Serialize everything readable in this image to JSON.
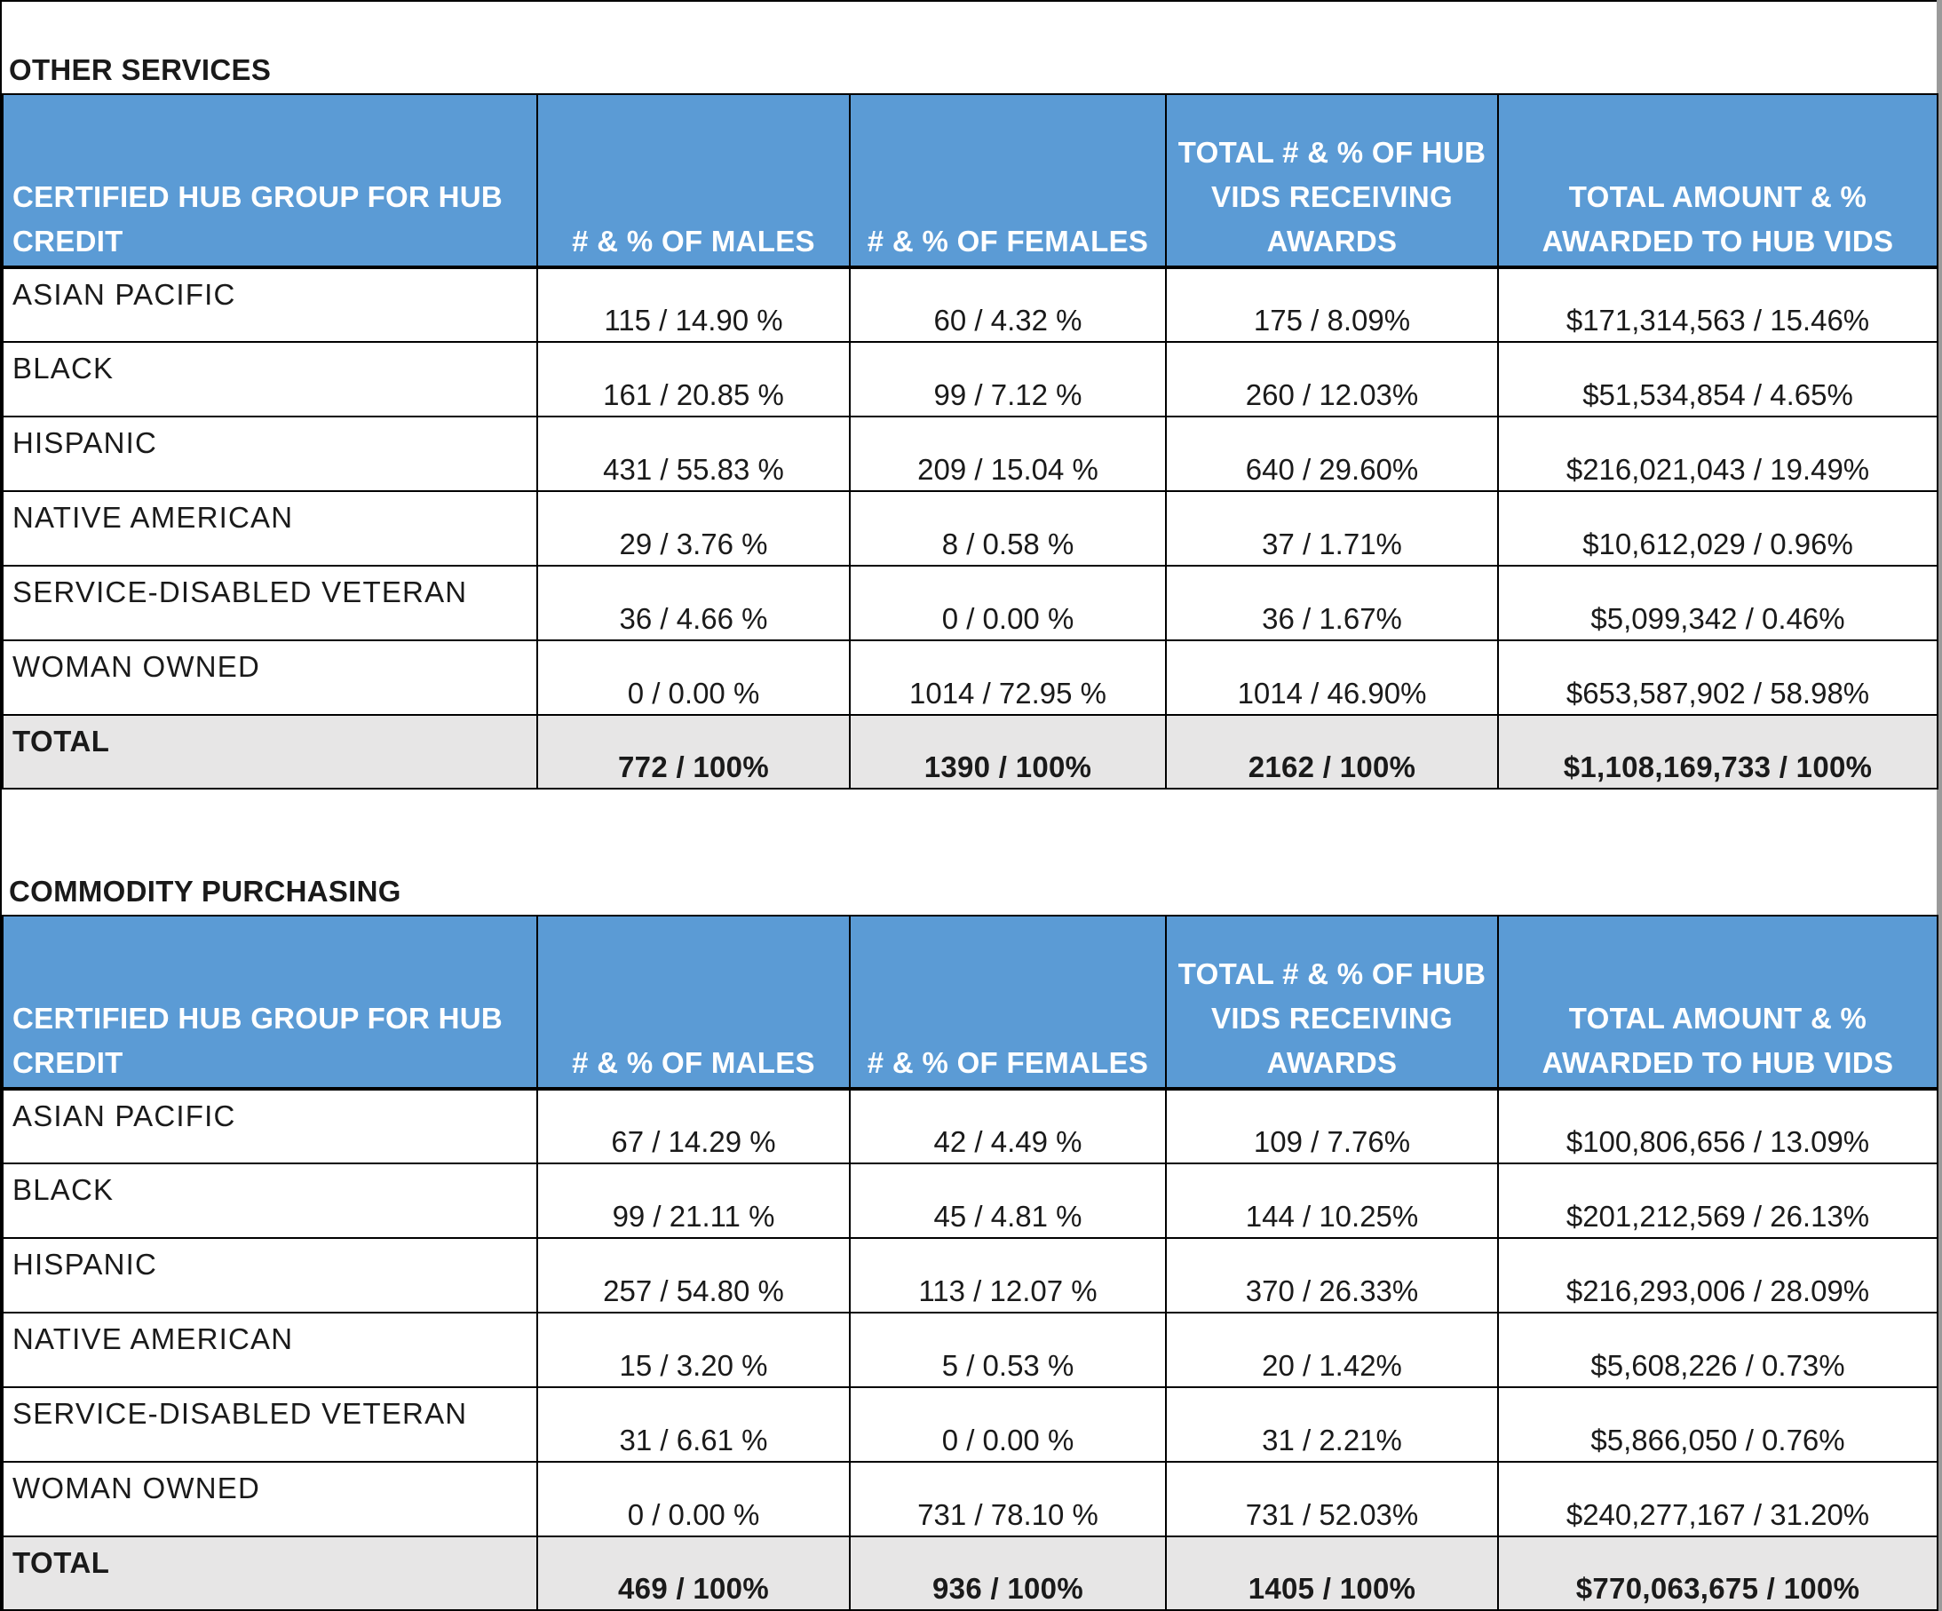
{
  "sections": [
    {
      "title": "OTHER SERVICES",
      "headers": [
        "CERTIFIED HUB GROUP FOR HUB CREDIT",
        "# & % OF MALES",
        "# & % OF FEMALES",
        "TOTAL # & % OF HUB VIDS RECEIVING AWARDS",
        "TOTAL AMOUNT & % AWARDED TO HUB VIDS"
      ],
      "rows": [
        [
          "ASIAN PACIFIC",
          "115 / 14.90 %",
          "60 / 4.32 %",
          "175 / 8.09%",
          "$171,314,563 / 15.46%"
        ],
        [
          "BLACK",
          "161 / 20.85 %",
          "99 / 7.12 %",
          "260 / 12.03%",
          "$51,534,854 / 4.65%"
        ],
        [
          "HISPANIC",
          "431 / 55.83 %",
          "209 / 15.04 %",
          "640 / 29.60%",
          "$216,021,043 / 19.49%"
        ],
        [
          "NATIVE AMERICAN",
          "29 / 3.76 %",
          "8 / 0.58 %",
          "37 / 1.71%",
          "$10,612,029 / 0.96%"
        ],
        [
          "SERVICE-DISABLED VETERAN",
          "36 / 4.66 %",
          "0 / 0.00 %",
          "36 / 1.67%",
          "$5,099,342 / 0.46%"
        ],
        [
          "WOMAN OWNED",
          "0 / 0.00 %",
          "1014 / 72.95 %",
          "1014 / 46.90%",
          "$653,587,902 / 58.98%"
        ]
      ],
      "total": [
        "TOTAL",
        "772 / 100%",
        "1390 / 100%",
        "2162 / 100%",
        "$1,108,169,733 / 100%"
      ]
    },
    {
      "title": "COMMODITY PURCHASING",
      "headers": [
        "CERTIFIED HUB GROUP FOR HUB CREDIT",
        "# & % OF MALES",
        "# & % OF FEMALES",
        "TOTAL # & % OF HUB VIDS RECEIVING AWARDS",
        "TOTAL AMOUNT & % AWARDED TO HUB VIDS"
      ],
      "rows": [
        [
          "ASIAN PACIFIC",
          "67 / 14.29 %",
          "42 / 4.49 %",
          "109 / 7.76%",
          "$100,806,656 / 13.09%"
        ],
        [
          "BLACK",
          "99 / 21.11 %",
          "45 / 4.81 %",
          "144 / 10.25%",
          "$201,212,569 / 26.13%"
        ],
        [
          "HISPANIC",
          "257 / 54.80 %",
          "113 / 12.07 %",
          "370 / 26.33%",
          "$216,293,006 / 28.09%"
        ],
        [
          "NATIVE AMERICAN",
          "15 / 3.20 %",
          "5 / 0.53 %",
          "20 / 1.42%",
          "$5,608,226 / 0.73%"
        ],
        [
          "SERVICE-DISABLED VETERAN",
          "31 / 6.61 %",
          "0 / 0.00 %",
          "31 / 2.21%",
          "$5,866,050 / 0.76%"
        ],
        [
          "WOMAN OWNED",
          "0 / 0.00 %",
          "731 / 78.10 %",
          "731 / 52.03%",
          "$240,277,167 / 31.20%"
        ]
      ],
      "total": [
        "TOTAL",
        "469 / 100%",
        "936 / 100%",
        "1405 / 100%",
        "$770,063,675 / 100%"
      ]
    }
  ]
}
